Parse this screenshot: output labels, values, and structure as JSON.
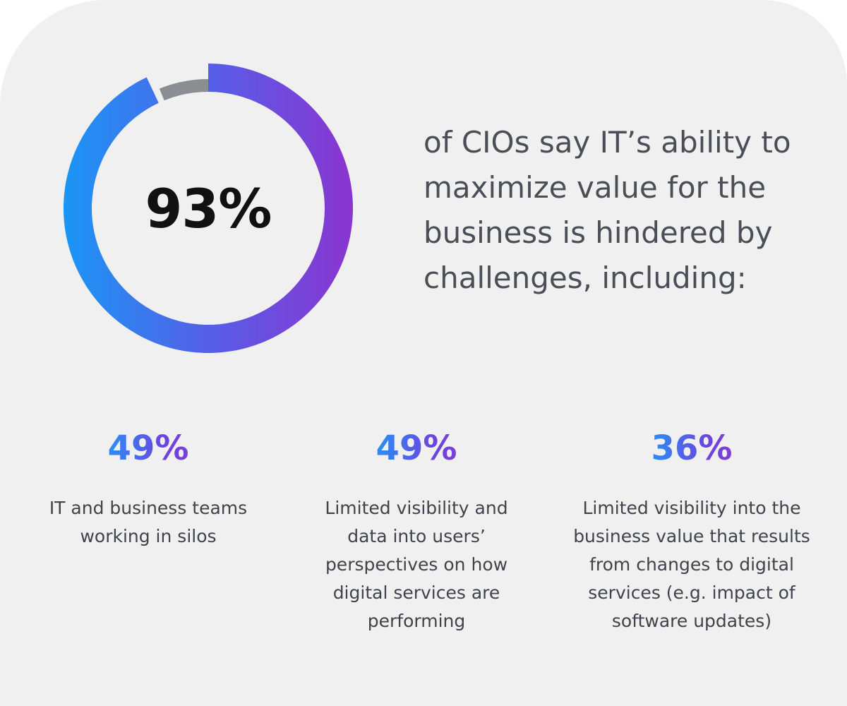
{
  "chart_data": {
    "type": "pie",
    "variant": "donut",
    "values": [
      93,
      7
    ],
    "center_label": "93%",
    "colors": {
      "gradient_start": "#1a96f5",
      "gradient_mid": "#5b5ae6",
      "gradient_end": "#8a35cf",
      "remainder": "#8a8d92"
    }
  },
  "headline": "of CIOs say IT’s ability to maximize value for the business is hindered by challenges, including:",
  "stats": [
    {
      "value": "49%",
      "description": "IT and business teams working in silos"
    },
    {
      "value": "49%",
      "description": "Limited visibility and data into users’ perspectives on how digital services are performing"
    },
    {
      "value": "36%",
      "description": "Limited visibility into the business value that results from changes to digital services (e.g. impact of software updates)"
    }
  ],
  "colors": {
    "background": "#f0f0f0",
    "text": "#4a4e57",
    "accent_blue": "#2b8ef5",
    "accent_purple": "#7b3fd6"
  }
}
